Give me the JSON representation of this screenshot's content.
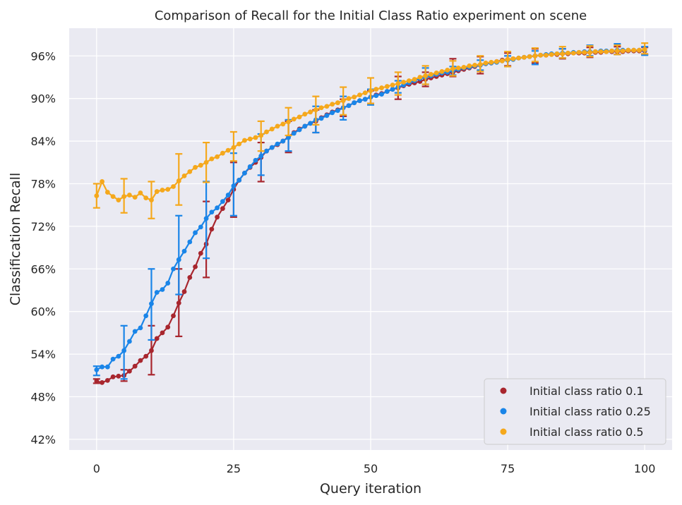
{
  "chart_data": {
    "type": "line",
    "title": "Comparison of Recall for the Initial Class Ratio experiment on scene",
    "xlabel": "Query iteration",
    "ylabel": "Classification Recall",
    "xlim": [
      -5,
      105
    ],
    "ylim": [
      0.405,
      0.999
    ],
    "x_ticks": [
      0,
      25,
      50,
      75,
      100
    ],
    "x_tick_labels": [
      "0",
      "25",
      "50",
      "75",
      "100"
    ],
    "y_ticks": [
      0.42,
      0.48,
      0.54,
      0.6,
      0.66,
      0.72,
      0.78,
      0.84,
      0.9,
      0.96
    ],
    "y_tick_labels": [
      "42%",
      "48%",
      "54%",
      "60%",
      "66%",
      "72%",
      "78%",
      "84%",
      "90%",
      "96%"
    ],
    "grid": true,
    "legend_position": "bottom-right",
    "background": "#eaeaf2",
    "series": [
      {
        "name": "Initial class ratio 0.1",
        "color": "#a8262e",
        "x": [
          0,
          1,
          2,
          3,
          4,
          5,
          6,
          7,
          8,
          9,
          10,
          11,
          12,
          13,
          14,
          15,
          16,
          17,
          18,
          19,
          20,
          21,
          22,
          23,
          24,
          25,
          26,
          27,
          28,
          29,
          30,
          31,
          32,
          33,
          34,
          35,
          36,
          37,
          38,
          39,
          40,
          41,
          42,
          43,
          44,
          45,
          46,
          47,
          48,
          49,
          50,
          51,
          52,
          53,
          54,
          55,
          56,
          57,
          58,
          59,
          60,
          61,
          62,
          63,
          64,
          65,
          66,
          67,
          68,
          69,
          70,
          71,
          72,
          73,
          74,
          75,
          76,
          77,
          78,
          79,
          80,
          81,
          82,
          83,
          84,
          85,
          86,
          87,
          88,
          89,
          90,
          91,
          92,
          93,
          94,
          95,
          96,
          97,
          98,
          99,
          100
        ],
        "y": [
          0.502,
          0.5,
          0.503,
          0.508,
          0.509,
          0.51,
          0.516,
          0.523,
          0.531,
          0.537,
          0.545,
          0.562,
          0.57,
          0.578,
          0.594,
          0.612,
          0.628,
          0.648,
          0.663,
          0.682,
          0.695,
          0.716,
          0.733,
          0.745,
          0.757,
          0.772,
          0.785,
          0.795,
          0.803,
          0.81,
          0.817,
          0.826,
          0.831,
          0.835,
          0.84,
          0.846,
          0.852,
          0.857,
          0.861,
          0.865,
          0.868,
          0.873,
          0.877,
          0.881,
          0.884,
          0.887,
          0.89,
          0.894,
          0.897,
          0.899,
          0.902,
          0.905,
          0.907,
          0.91,
          0.913,
          0.915,
          0.918,
          0.92,
          0.922,
          0.924,
          0.927,
          0.929,
          0.931,
          0.933,
          0.935,
          0.937,
          0.939,
          0.941,
          0.943,
          0.945,
          0.947,
          0.949,
          0.95,
          0.952,
          0.954,
          0.955,
          0.956,
          0.957,
          0.958,
          0.959,
          0.96,
          0.961,
          0.961,
          0.962,
          0.962,
          0.963,
          0.963,
          0.964,
          0.964,
          0.964,
          0.965,
          0.965,
          0.965,
          0.966,
          0.966,
          0.966,
          0.966,
          0.967,
          0.967,
          0.967,
          0.967
        ],
        "error_bars": [
          {
            "x": 0,
            "low": 0.499,
            "high": 0.505
          },
          {
            "x": 5,
            "low": 0.502,
            "high": 0.518
          },
          {
            "x": 10,
            "low": 0.511,
            "high": 0.58
          },
          {
            "x": 15,
            "low": 0.565,
            "high": 0.66
          },
          {
            "x": 20,
            "low": 0.648,
            "high": 0.755
          },
          {
            "x": 25,
            "low": 0.733,
            "high": 0.81
          },
          {
            "x": 30,
            "low": 0.783,
            "high": 0.838
          },
          {
            "x": 35,
            "low": 0.824,
            "high": 0.868
          },
          {
            "x": 40,
            "low": 0.852,
            "high": 0.884
          },
          {
            "x": 45,
            "low": 0.875,
            "high": 0.899
          },
          {
            "x": 50,
            "low": 0.893,
            "high": 0.911
          },
          {
            "x": 55,
            "low": 0.899,
            "high": 0.931
          },
          {
            "x": 60,
            "low": 0.917,
            "high": 0.937
          },
          {
            "x": 65,
            "low": 0.931,
            "high": 0.956
          },
          {
            "x": 70,
            "low": 0.935,
            "high": 0.959
          },
          {
            "x": 75,
            "low": 0.946,
            "high": 0.964
          },
          {
            "x": 80,
            "low": 0.95,
            "high": 0.97
          },
          {
            "x": 85,
            "low": 0.956,
            "high": 0.97
          },
          {
            "x": 90,
            "low": 0.958,
            "high": 0.972
          },
          {
            "x": 95,
            "low": 0.962,
            "high": 0.973
          },
          {
            "x": 100,
            "low": 0.962,
            "high": 0.972
          }
        ]
      },
      {
        "name": "Initial class ratio 0.25",
        "color": "#1a85e8",
        "x": [
          0,
          1,
          2,
          3,
          4,
          5,
          6,
          7,
          8,
          9,
          10,
          11,
          12,
          13,
          14,
          15,
          16,
          17,
          18,
          19,
          20,
          21,
          22,
          23,
          24,
          25,
          26,
          27,
          28,
          29,
          30,
          31,
          32,
          33,
          34,
          35,
          36,
          37,
          38,
          39,
          40,
          41,
          42,
          43,
          44,
          45,
          46,
          47,
          48,
          49,
          50,
          51,
          52,
          53,
          54,
          55,
          56,
          57,
          58,
          59,
          60,
          61,
          62,
          63,
          64,
          65,
          66,
          67,
          68,
          69,
          70,
          71,
          72,
          73,
          74,
          75,
          76,
          77,
          78,
          79,
          80,
          81,
          82,
          83,
          84,
          85,
          86,
          87,
          88,
          89,
          90,
          91,
          92,
          93,
          94,
          95,
          96,
          97,
          98,
          99,
          100
        ],
        "y": [
          0.518,
          0.522,
          0.522,
          0.533,
          0.537,
          0.545,
          0.558,
          0.572,
          0.577,
          0.594,
          0.611,
          0.627,
          0.631,
          0.64,
          0.66,
          0.673,
          0.685,
          0.698,
          0.711,
          0.719,
          0.731,
          0.74,
          0.746,
          0.755,
          0.764,
          0.777,
          0.785,
          0.795,
          0.804,
          0.813,
          0.819,
          0.826,
          0.831,
          0.836,
          0.84,
          0.845,
          0.851,
          0.856,
          0.861,
          0.865,
          0.87,
          0.872,
          0.876,
          0.88,
          0.883,
          0.887,
          0.89,
          0.894,
          0.897,
          0.899,
          0.902,
          0.904,
          0.906,
          0.91,
          0.913,
          0.916,
          0.919,
          0.922,
          0.925,
          0.928,
          0.93,
          0.932,
          0.934,
          0.936,
          0.937,
          0.939,
          0.941,
          0.943,
          0.944,
          0.946,
          0.947,
          0.949,
          0.95,
          0.951,
          0.953,
          0.954,
          0.955,
          0.957,
          0.958,
          0.959,
          0.96,
          0.961,
          0.962,
          0.963,
          0.963,
          0.964,
          0.964,
          0.965,
          0.965,
          0.966,
          0.966,
          0.966,
          0.967,
          0.967,
          0.967,
          0.968,
          0.968,
          0.968,
          0.968,
          0.968,
          0.968
        ],
        "error_bars": [
          {
            "x": 0,
            "low": 0.51,
            "high": 0.523
          },
          {
            "x": 5,
            "low": 0.505,
            "high": 0.58
          },
          {
            "x": 10,
            "low": 0.56,
            "high": 0.66
          },
          {
            "x": 15,
            "low": 0.624,
            "high": 0.735
          },
          {
            "x": 20,
            "low": 0.675,
            "high": 0.783
          },
          {
            "x": 25,
            "low": 0.735,
            "high": 0.823
          },
          {
            "x": 30,
            "low": 0.792,
            "high": 0.85
          },
          {
            "x": 35,
            "low": 0.826,
            "high": 0.87
          },
          {
            "x": 40,
            "low": 0.852,
            "high": 0.889
          },
          {
            "x": 45,
            "low": 0.87,
            "high": 0.903
          },
          {
            "x": 50,
            "low": 0.891,
            "high": 0.913
          },
          {
            "x": 55,
            "low": 0.908,
            "high": 0.925
          },
          {
            "x": 60,
            "low": 0.92,
            "high": 0.943
          },
          {
            "x": 65,
            "low": 0.933,
            "high": 0.945
          },
          {
            "x": 70,
            "low": 0.94,
            "high": 0.954
          },
          {
            "x": 75,
            "low": 0.945,
            "high": 0.96
          },
          {
            "x": 80,
            "low": 0.948,
            "high": 0.967
          },
          {
            "x": 85,
            "low": 0.957,
            "high": 0.97
          },
          {
            "x": 90,
            "low": 0.96,
            "high": 0.975
          },
          {
            "x": 95,
            "low": 0.962,
            "high": 0.977
          },
          {
            "x": 100,
            "low": 0.961,
            "high": 0.973
          }
        ]
      },
      {
        "name": "Initial class ratio 0.5",
        "color": "#f5a81c",
        "x": [
          0,
          1,
          2,
          3,
          4,
          5,
          6,
          7,
          8,
          9,
          10,
          11,
          12,
          13,
          14,
          15,
          16,
          17,
          18,
          19,
          20,
          21,
          22,
          23,
          24,
          25,
          26,
          27,
          28,
          29,
          30,
          31,
          32,
          33,
          34,
          35,
          36,
          37,
          38,
          39,
          40,
          41,
          42,
          43,
          44,
          45,
          46,
          47,
          48,
          49,
          50,
          51,
          52,
          53,
          54,
          55,
          56,
          57,
          58,
          59,
          60,
          61,
          62,
          63,
          64,
          65,
          66,
          67,
          68,
          69,
          70,
          71,
          72,
          73,
          74,
          75,
          76,
          77,
          78,
          79,
          80,
          81,
          82,
          83,
          84,
          85,
          86,
          87,
          88,
          89,
          90,
          91,
          92,
          93,
          94,
          95,
          96,
          97,
          98,
          99,
          100
        ],
        "y": [
          0.763,
          0.783,
          0.768,
          0.762,
          0.757,
          0.762,
          0.764,
          0.761,
          0.767,
          0.76,
          0.757,
          0.769,
          0.771,
          0.772,
          0.776,
          0.784,
          0.791,
          0.797,
          0.803,
          0.806,
          0.81,
          0.815,
          0.818,
          0.823,
          0.827,
          0.831,
          0.836,
          0.841,
          0.843,
          0.845,
          0.848,
          0.853,
          0.857,
          0.861,
          0.864,
          0.867,
          0.871,
          0.874,
          0.878,
          0.881,
          0.884,
          0.887,
          0.889,
          0.892,
          0.894,
          0.897,
          0.9,
          0.902,
          0.905,
          0.908,
          0.911,
          0.913,
          0.915,
          0.917,
          0.919,
          0.921,
          0.923,
          0.925,
          0.927,
          0.93,
          0.932,
          0.934,
          0.936,
          0.938,
          0.94,
          0.942,
          0.943,
          0.944,
          0.946,
          0.947,
          0.948,
          0.95,
          0.951,
          0.952,
          0.953,
          0.955,
          0.956,
          0.957,
          0.958,
          0.959,
          0.96,
          0.961,
          0.961,
          0.962,
          0.963,
          0.963,
          0.964,
          0.964,
          0.965,
          0.965,
          0.965,
          0.966,
          0.966,
          0.966,
          0.967,
          0.967,
          0.967,
          0.968,
          0.968,
          0.968,
          0.969
        ],
        "error_bars": [
          {
            "x": 0,
            "low": 0.746,
            "high": 0.78
          },
          {
            "x": 5,
            "low": 0.739,
            "high": 0.787
          },
          {
            "x": 10,
            "low": 0.731,
            "high": 0.783
          },
          {
            "x": 15,
            "low": 0.75,
            "high": 0.822
          },
          {
            "x": 20,
            "low": 0.782,
            "high": 0.838
          },
          {
            "x": 25,
            "low": 0.812,
            "high": 0.853
          },
          {
            "x": 30,
            "low": 0.826,
            "high": 0.868
          },
          {
            "x": 35,
            "low": 0.848,
            "high": 0.887
          },
          {
            "x": 40,
            "low": 0.863,
            "high": 0.903
          },
          {
            "x": 45,
            "low": 0.877,
            "high": 0.916
          },
          {
            "x": 50,
            "low": 0.893,
            "high": 0.929
          },
          {
            "x": 55,
            "low": 0.905,
            "high": 0.937
          },
          {
            "x": 60,
            "low": 0.92,
            "high": 0.946
          },
          {
            "x": 65,
            "low": 0.932,
            "high": 0.953
          },
          {
            "x": 70,
            "low": 0.938,
            "high": 0.96
          },
          {
            "x": 75,
            "low": 0.945,
            "high": 0.966
          },
          {
            "x": 80,
            "low": 0.952,
            "high": 0.971
          },
          {
            "x": 85,
            "low": 0.957,
            "high": 0.973
          },
          {
            "x": 90,
            "low": 0.959,
            "high": 0.974
          },
          {
            "x": 95,
            "low": 0.962,
            "high": 0.975
          },
          {
            "x": 100,
            "low": 0.963,
            "high": 0.978
          }
        ]
      }
    ]
  }
}
